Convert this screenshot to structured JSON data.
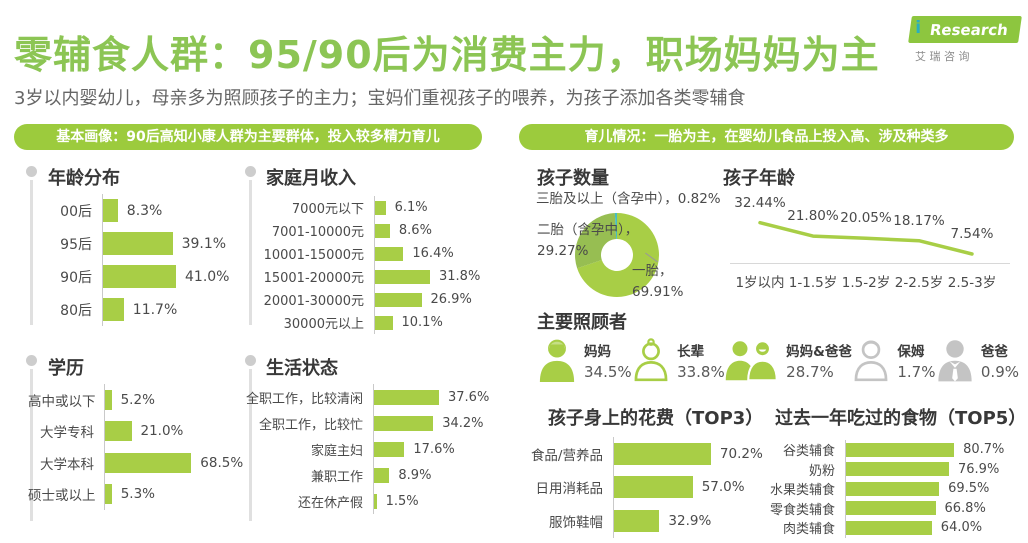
{
  "header": {
    "title": "零辅食人群：95/90后为消费主力，职场妈妈为主",
    "subtitle": "3岁以内婴幼儿，母亲多为照顾孩子的主力；宝妈们重视孩子的喂养，为孩子添加各类零辅食",
    "logo": {
      "brand_i": "i",
      "brand_rest": "Research",
      "cn": "艾 瑞 咨 询"
    }
  },
  "banners": {
    "profile": "基本画像：90后高知小康人群为主要群体，投入较多精力育儿",
    "parenting": "育儿情况：一胎为主，在婴幼儿食品上投入高、涉及种类多"
  },
  "colors": {
    "title_green": "#8CC554",
    "banner_green": "#9CCB3D",
    "bar_green": "#A8CE46",
    "donut_main": "#A8CE46",
    "donut_secondary": "#97BE52",
    "donut_teal": "#44BCC3",
    "icon_gray": "#C4C4C4"
  },
  "chart_data": [
    {
      "id": "age",
      "type": "bar",
      "title": "年龄分布",
      "unit": "%",
      "categories": [
        "00后",
        "95后",
        "90后",
        "80后"
      ],
      "values": [
        8.3,
        39.1,
        41.0,
        11.7
      ],
      "labels": [
        "8.3%",
        "39.1%",
        "41.0%",
        "11.7%"
      ]
    },
    {
      "id": "income",
      "type": "bar",
      "title": "家庭月收入",
      "unit": "%",
      "categories": [
        "7000元以下",
        "7001-10000元",
        "10001-15000元",
        "15001-20000元",
        "20001-30000元",
        "30000元以上"
      ],
      "values": [
        6.1,
        8.6,
        16.4,
        31.8,
        26.9,
        10.1
      ],
      "labels": [
        "6.1%",
        "8.6%",
        "16.4%",
        "31.8%",
        "26.9%",
        "10.1%"
      ]
    },
    {
      "id": "education",
      "type": "bar",
      "title": "学历",
      "unit": "%",
      "categories": [
        "高中或以下",
        "大学专科",
        "大学本科",
        "硕士或以上"
      ],
      "values": [
        5.2,
        21.0,
        68.5,
        5.3
      ],
      "labels": [
        "5.2%",
        "21.0%",
        "68.5%",
        "5.3%"
      ]
    },
    {
      "id": "life_status",
      "type": "bar",
      "title": "生活状态",
      "unit": "%",
      "categories": [
        "全职工作，比较清闲",
        "全职工作，比较忙",
        "家庭主妇",
        "兼职工作",
        "还在休产假"
      ],
      "values": [
        37.6,
        34.2,
        17.6,
        8.9,
        1.5
      ],
      "labels": [
        "37.6%",
        "34.2%",
        "17.6%",
        "8.9%",
        "1.5%"
      ]
    },
    {
      "id": "children_count",
      "type": "pie",
      "title": "孩子数量",
      "slices": [
        {
          "label": "一胎",
          "value": 69.91,
          "display": "一胎，69.91%",
          "color": "#A8CE46"
        },
        {
          "label": "二胎（含孕中）",
          "value": 29.27,
          "display": "二胎（含孕中），29.27%",
          "color": "#97BE52"
        },
        {
          "label": "三胎及以上（含孕中）",
          "value": 0.82,
          "display": "三胎及以上（含孕中），0.82%",
          "color": "#44BCC3"
        }
      ]
    },
    {
      "id": "child_age",
      "type": "line",
      "title": "孩子年龄",
      "unit": "%",
      "categories": [
        "1岁以内",
        "1-1.5岁",
        "1.5-2岁",
        "2-2.5岁",
        "2.5-3岁"
      ],
      "values": [
        32.44,
        21.8,
        20.05,
        18.17,
        7.54
      ],
      "labels": [
        "32.44%",
        "21.80%",
        "20.05%",
        "18.17%",
        "7.54%"
      ]
    },
    {
      "id": "caregivers",
      "type": "icons",
      "title": "主要照顾者",
      "items": [
        {
          "label": "妈妈",
          "value": "34.5%"
        },
        {
          "label": "长辈",
          "value": "33.8%"
        },
        {
          "label": "妈妈&爸爸",
          "value": "28.7%"
        },
        {
          "label": "保姆",
          "value": "1.7%"
        },
        {
          "label": "爸爸",
          "value": "0.9%"
        }
      ]
    },
    {
      "id": "spending_top3",
      "type": "bar",
      "title": "孩子身上的花费（TOP3）",
      "unit": "%",
      "categories": [
        "食品/营养品",
        "日用消耗品",
        "服饰鞋帽"
      ],
      "values": [
        70.2,
        57.0,
        32.9
      ],
      "labels": [
        "70.2%",
        "57.0%",
        "32.9%"
      ]
    },
    {
      "id": "foods_top5",
      "type": "bar",
      "title": "过去一年吃过的食物（TOP5）",
      "unit": "%",
      "categories": [
        "谷类辅食",
        "奶粉",
        "水果类辅食",
        "零食类辅食",
        "肉类辅食"
      ],
      "values": [
        80.7,
        76.9,
        69.5,
        66.8,
        64.0
      ],
      "labels": [
        "80.7%",
        "76.9%",
        "69.5%",
        "66.8%",
        "64.0%"
      ]
    }
  ]
}
